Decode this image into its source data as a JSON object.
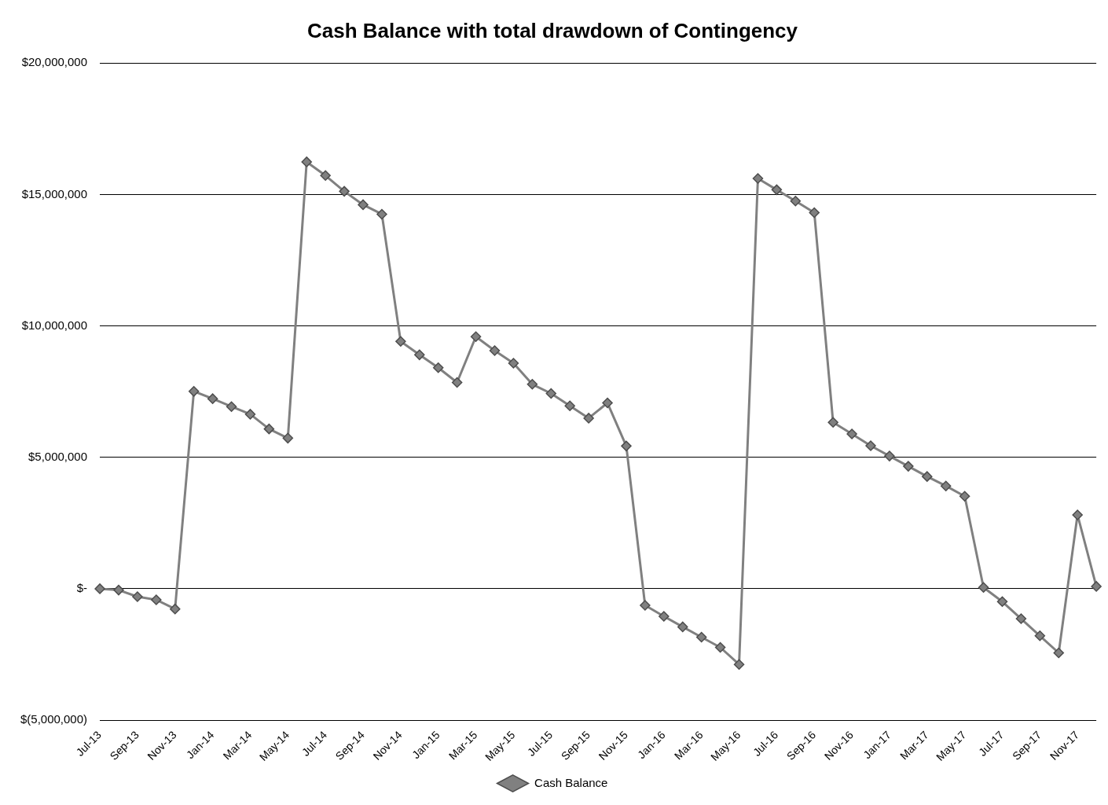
{
  "chart_data": {
    "type": "line",
    "title": "Cash Balance with total drawdown of Contingency",
    "categories": [
      "Jul-13",
      null,
      "Sep-13",
      null,
      "Nov-13",
      null,
      "Jan-14",
      null,
      "Mar-14",
      null,
      "May-14",
      null,
      "Jul-14",
      null,
      "Sep-14",
      null,
      "Nov-14",
      null,
      "Jan-15",
      null,
      "Mar-15",
      null,
      "May-15",
      null,
      "Jul-15",
      null,
      "Sep-15",
      null,
      "Nov-15",
      null,
      "Jan-16",
      null,
      "Mar-16",
      null,
      "May-16",
      null,
      "Jul-16",
      null,
      "Sep-16",
      null,
      "Nov-16",
      null,
      "Jan-17",
      null,
      "Mar-17",
      null,
      "May-17",
      null,
      "Jul-17",
      null,
      "Sep-17",
      null,
      "Nov-17",
      null
    ],
    "series": [
      {
        "name": "Cash Balance",
        "color": "#808080",
        "values": [
          0,
          -50000,
          -300000,
          -420000,
          -770000,
          7510000,
          7230000,
          6930000,
          6640000,
          6080000,
          5730000,
          16240000,
          15720000,
          15120000,
          14610000,
          14250000,
          9410000,
          8900000,
          8410000,
          7850000,
          9590000,
          9060000,
          8580000,
          7780000,
          7430000,
          6960000,
          6490000,
          7070000,
          5430000,
          -630000,
          -1050000,
          -1450000,
          -1840000,
          -2230000,
          -2880000,
          15610000,
          15180000,
          14750000,
          14310000,
          6330000,
          5890000,
          5440000,
          5050000,
          4660000,
          4270000,
          3910000,
          3520000,
          50000,
          -490000,
          -1140000,
          -1790000,
          -2440000,
          2810000,
          90000
        ]
      }
    ],
    "ylim": [
      -5000000,
      20000000
    ],
    "yticks": [
      {
        "value": -5000000,
        "label": "$(5,000,000)"
      },
      {
        "value": 0,
        "label": "$-"
      },
      {
        "value": 5000000,
        "label": "$5,000,000"
      },
      {
        "value": 10000000,
        "label": "$10,000,000"
      },
      {
        "value": 15000000,
        "label": "$15,000,000"
      },
      {
        "value": 20000000,
        "label": "$20,000,000"
      }
    ],
    "grid": "y",
    "legend": "bottom",
    "marker": "diamond",
    "line_style": "solid"
  }
}
